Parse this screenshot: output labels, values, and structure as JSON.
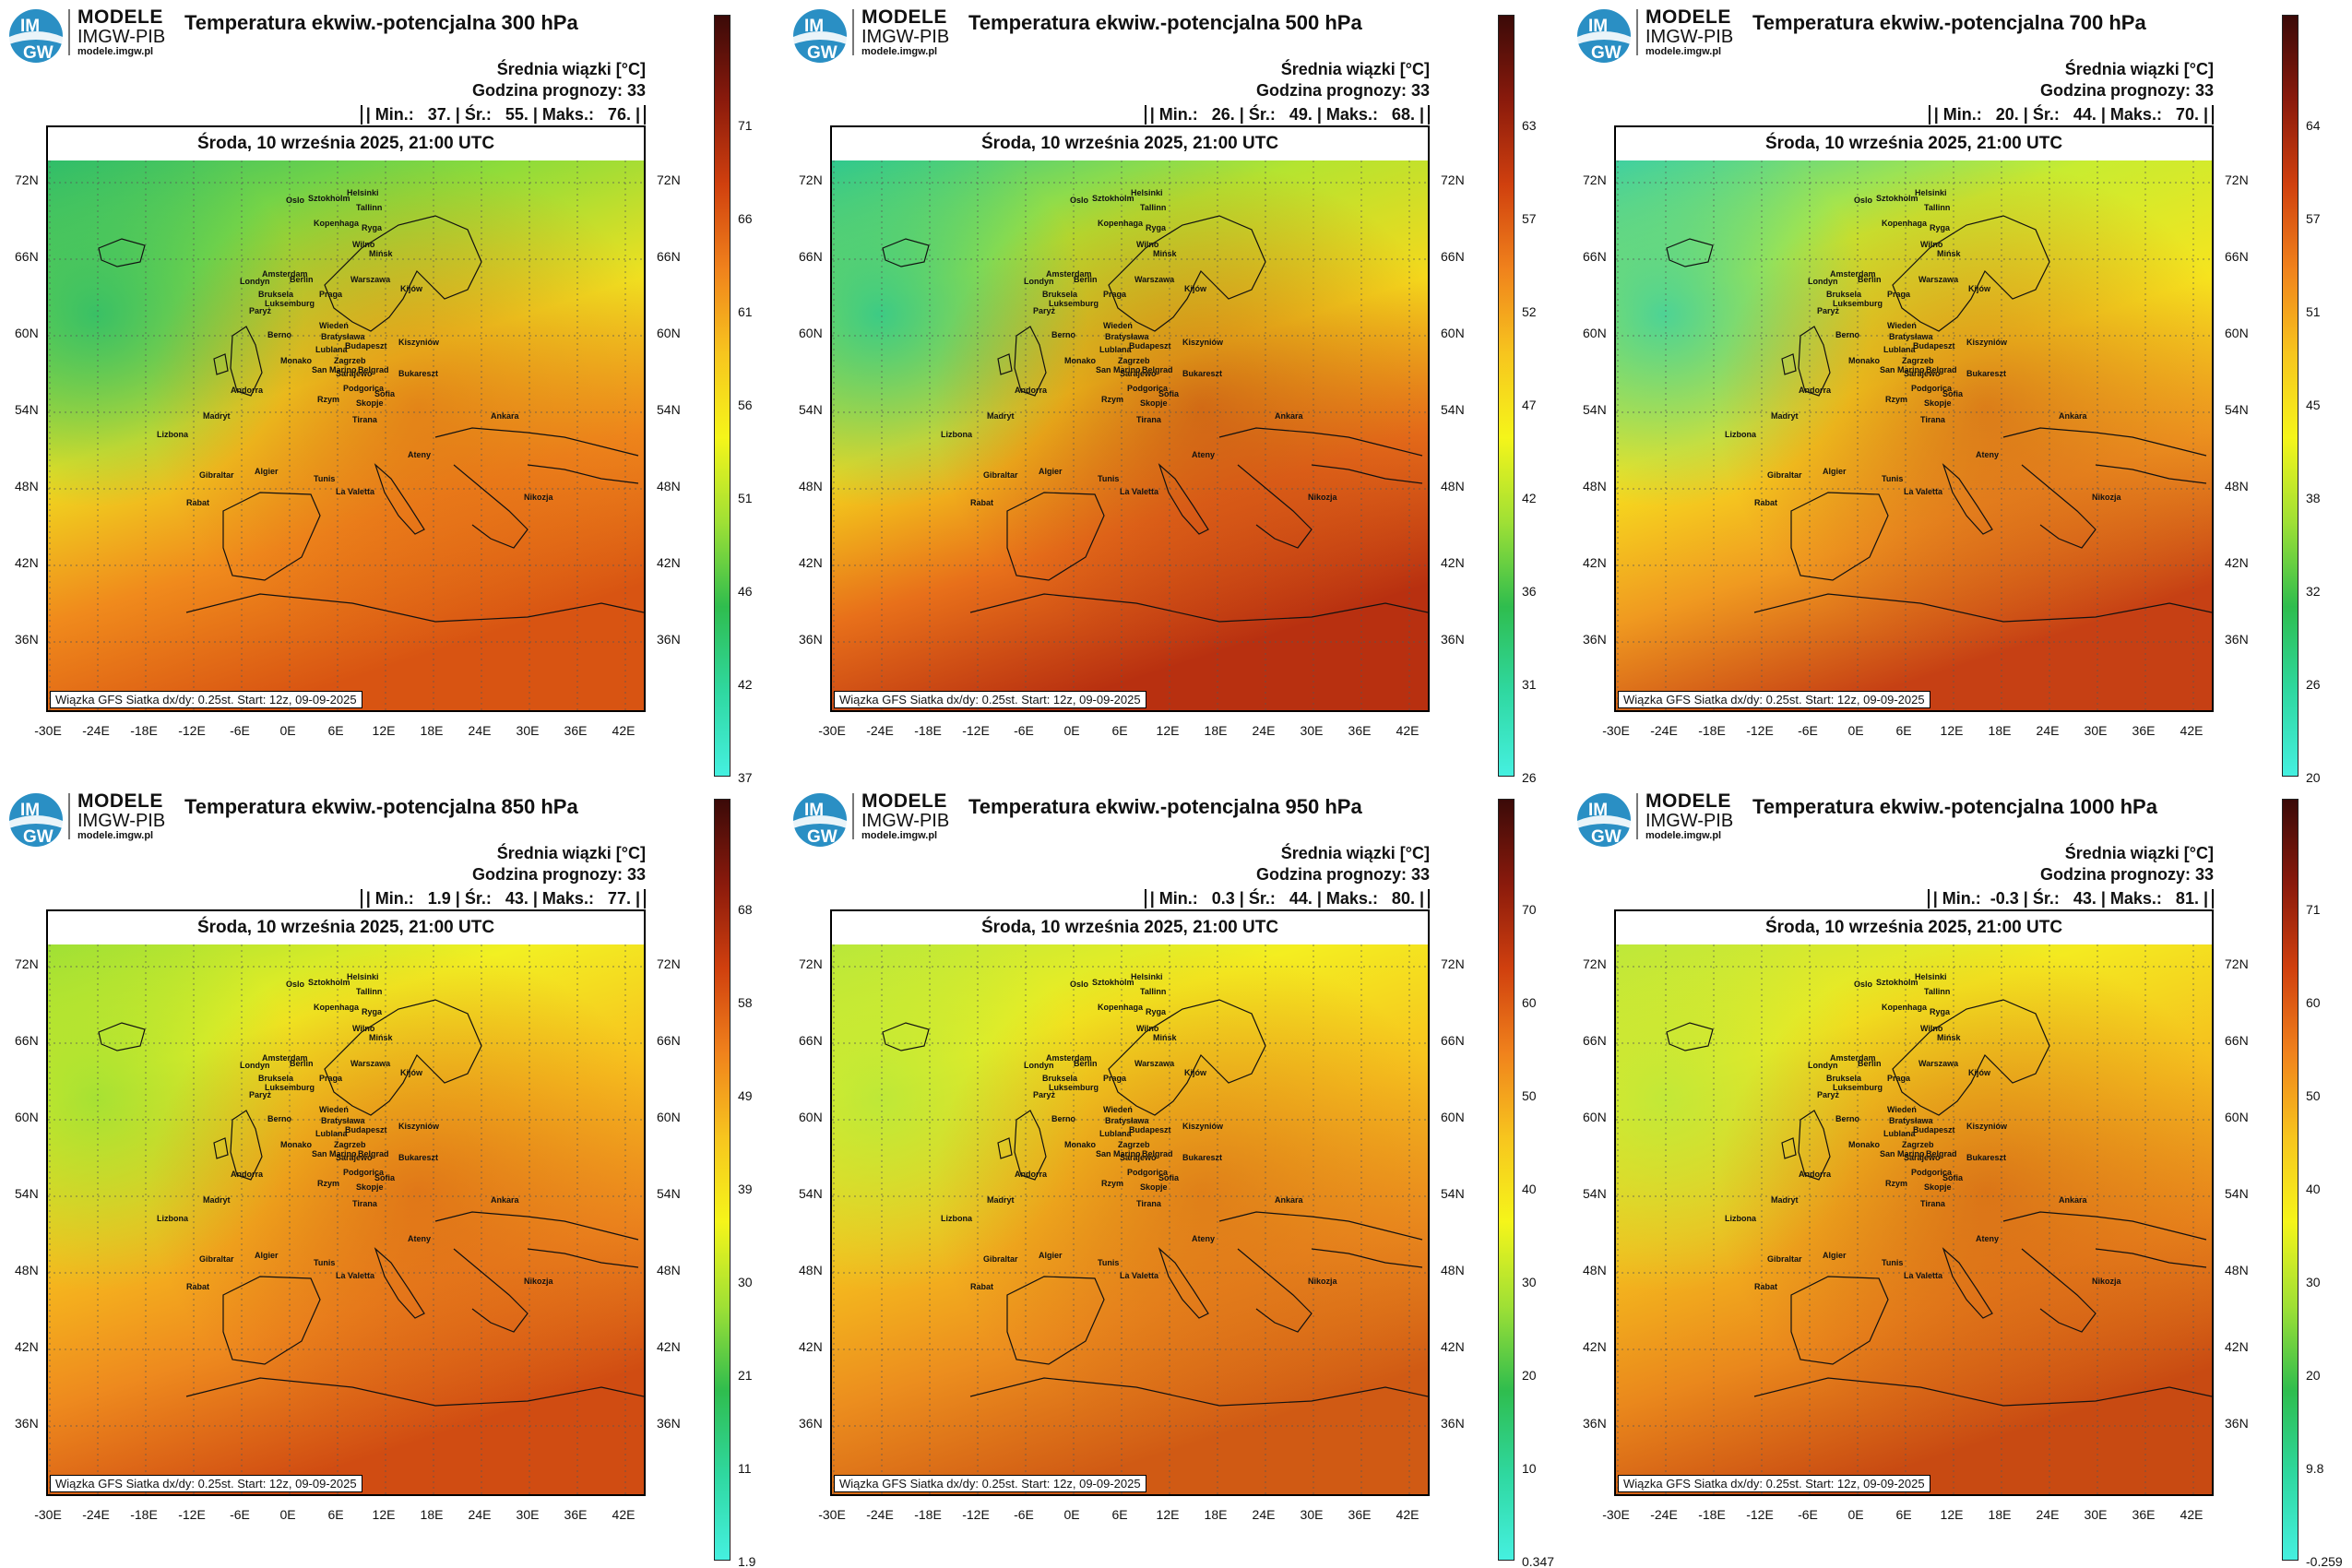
{
  "brand": {
    "line1": "MODELE",
    "line2": "IMGW-PIB",
    "line3": "modele.imgw.pl",
    "logo_text_1": "IM",
    "logo_text_2": "GW"
  },
  "common": {
    "legend_title": "Średnia wiązki [°C]",
    "forecast_hour": "Godzina prognozy: 33",
    "date": "Środa, 10 września 2025, 21:00 UTC",
    "footer": "Wiązka GFS Siatka dx/dy: 0.25st. Start: 12z, 09-09-2025",
    "lat_labels": [
      "72N",
      "66N",
      "60N",
      "54N",
      "48N",
      "42N",
      "36N"
    ],
    "lon_labels": [
      "-30E",
      "-24E",
      "-18E",
      "-12E",
      "-6E",
      "0E",
      "6E",
      "12E",
      "18E",
      "24E",
      "30E",
      "36E",
      "42E"
    ],
    "cities": [
      "Oslo",
      "Sztokholm",
      "Helsinki",
      "Tallinn",
      "Ryga",
      "Kopenhaga",
      "Wilno",
      "Mińsk",
      "Amsterdam",
      "Berlin",
      "Londyn",
      "Bruksela",
      "Luksemburg",
      "Paryż",
      "Praga",
      "Warszawa",
      "Kijów",
      "Berno",
      "Wiedeń",
      "Bratysława",
      "Budapeszt",
      "Kiszyniów",
      "Monako",
      "Lublana",
      "Zagrzeb",
      "San Marino",
      "Sarajewo",
      "Belgrad",
      "Bukareszt",
      "Podgorica",
      "Sofia",
      "Skopje",
      "Andorra",
      "Rzym",
      "Madryt",
      "Lizbona",
      "Tirana",
      "Ateny",
      "Ankara",
      "Gibraltar",
      "Algier",
      "Tunis",
      "La Valetta",
      "Rabat",
      "Nikozja"
    ]
  },
  "panels": [
    {
      "title": "Temperatura ekwiw.-potencjalna 300 hPa",
      "stats": "| Min.:   37. | Śr.:   55. | Maks.:   76. |",
      "colorbar_ticks": [
        "71",
        "66",
        "61",
        "56",
        "51",
        "46",
        "42",
        "37"
      ]
    },
    {
      "title": "Temperatura ekwiw.-potencjalna 500 hPa",
      "stats": "| Min.:   26. | Śr.:   49. | Maks.:   68. |",
      "colorbar_ticks": [
        "63",
        "57",
        "52",
        "47",
        "42",
        "36",
        "31",
        "26"
      ]
    },
    {
      "title": "Temperatura ekwiw.-potencjalna 700 hPa",
      "stats": "| Min.:   20. | Śr.:   44. | Maks.:   70. |",
      "colorbar_ticks": [
        "64",
        "57",
        "51",
        "45",
        "38",
        "32",
        "26",
        "20"
      ]
    },
    {
      "title": "Temperatura ekwiw.-potencjalna 850 hPa",
      "stats": "| Min.:   1.9 | Śr.:   43. | Maks.:   77. |",
      "colorbar_ticks": [
        "68",
        "58",
        "49",
        "39",
        "30",
        "21",
        "11",
        "1.9"
      ]
    },
    {
      "title": "Temperatura ekwiw.-potencjalna 950 hPa",
      "stats": "| Min.:   0.3 | Śr.:   44. | Maks.:   80. |",
      "colorbar_ticks": [
        "70",
        "60",
        "50",
        "40",
        "30",
        "20",
        "10",
        "0.347"
      ]
    },
    {
      "title": "Temperatura ekwiw.-potencjalna 1000 hPa",
      "stats": "| Min.:  -0.3 | Śr.:   43. | Maks.:   81. |",
      "colorbar_ticks": [
        "71",
        "60",
        "50",
        "40",
        "30",
        "20",
        "9.8",
        "-0.259"
      ]
    }
  ],
  "colorbar_colors": [
    "#3b0a08",
    "#8a1a0c",
    "#d0400e",
    "#f0821c",
    "#f7c51e",
    "#f5f51a",
    "#9fe035",
    "#2fbd4e",
    "#2fd8a0",
    "#45f0e0"
  ]
}
